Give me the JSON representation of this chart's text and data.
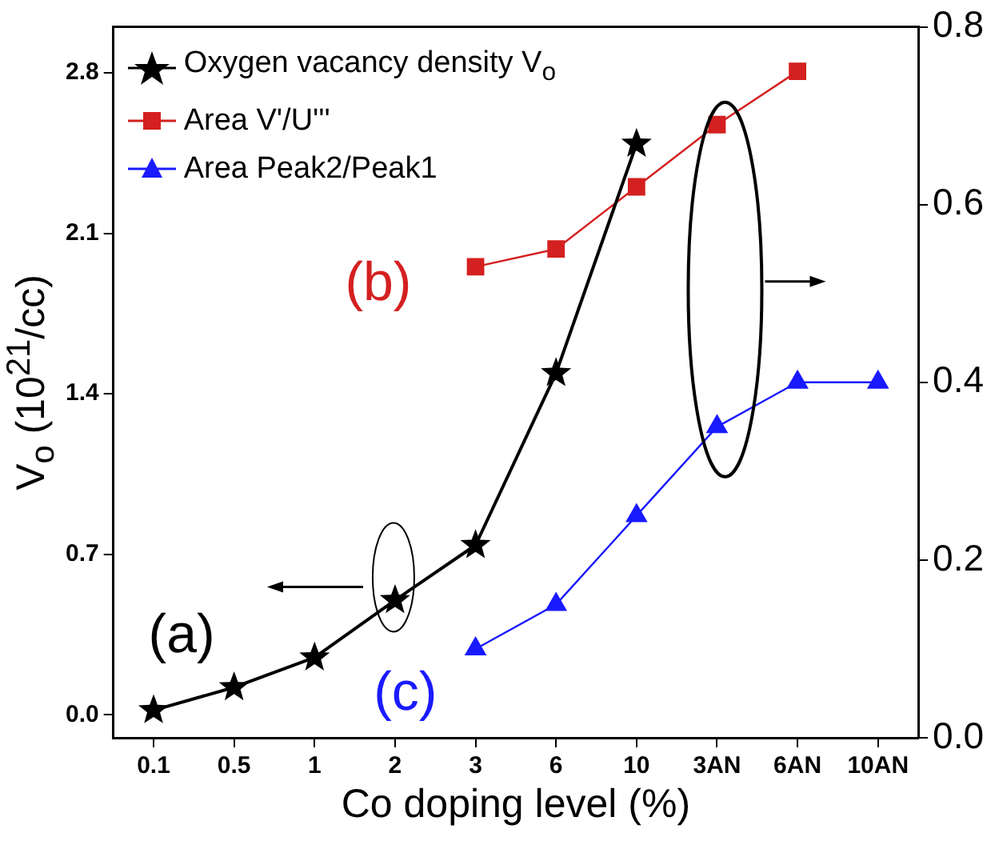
{
  "chart_data": {
    "type": "line",
    "xlabel": "Co doping level (%)",
    "ylabel": "V$_{o}$ (10$^{21}$/cc)",
    "categories": [
      "0.1",
      "0.5",
      "1",
      "2",
      "3",
      "6",
      "10",
      "3AN",
      "6AN",
      "10AN"
    ],
    "series": [
      {
        "name": "Oxygen vacancy density V$_{o}$",
        "color": "#000000",
        "marker": "star",
        "values": [
          0.02,
          0.12,
          0.25,
          0.5,
          0.74,
          1.49,
          2.49,
          null,
          null,
          null
        ]
      },
      {
        "name": "Area V'/U'''",
        "color": "#d42020",
        "marker": "square",
        "axis": "y2",
        "values": [
          null,
          null,
          null,
          null,
          0.53,
          0.55,
          0.62,
          0.69,
          0.75,
          null
        ]
      },
      {
        "name": "Area Peak2/Peak1",
        "color": "#1a1aff",
        "marker": "triangle",
        "axis": "y2",
        "values": [
          null,
          null,
          null,
          null,
          0.1,
          0.15,
          0.25,
          0.35,
          0.4,
          0.4
        ]
      }
    ],
    "ylim": [
      -0.1,
      3.0
    ],
    "yticks": [
      {
        "value": 0,
        "label": "0.0"
      },
      {
        "value": 0.7,
        "label": "0.7"
      },
      {
        "value": 1.4,
        "label": "1.4"
      },
      {
        "value": 2.1,
        "label": "2.1"
      },
      {
        "value": 2.8,
        "label": "2.8"
      }
    ],
    "y2lim": [
      0,
      0.8
    ],
    "y2ticks": [
      {
        "value": 0,
        "label": "0.0"
      },
      {
        "value": 0.2,
        "label": "0.2"
      },
      {
        "value": 0.4,
        "label": "0.4"
      },
      {
        "value": 0.6,
        "label": "0.6"
      },
      {
        "value": 0.8,
        "label": "0.8"
      }
    ],
    "legend": "top left",
    "annotations": [
      "(a)",
      "(b)",
      "(c)"
    ]
  }
}
